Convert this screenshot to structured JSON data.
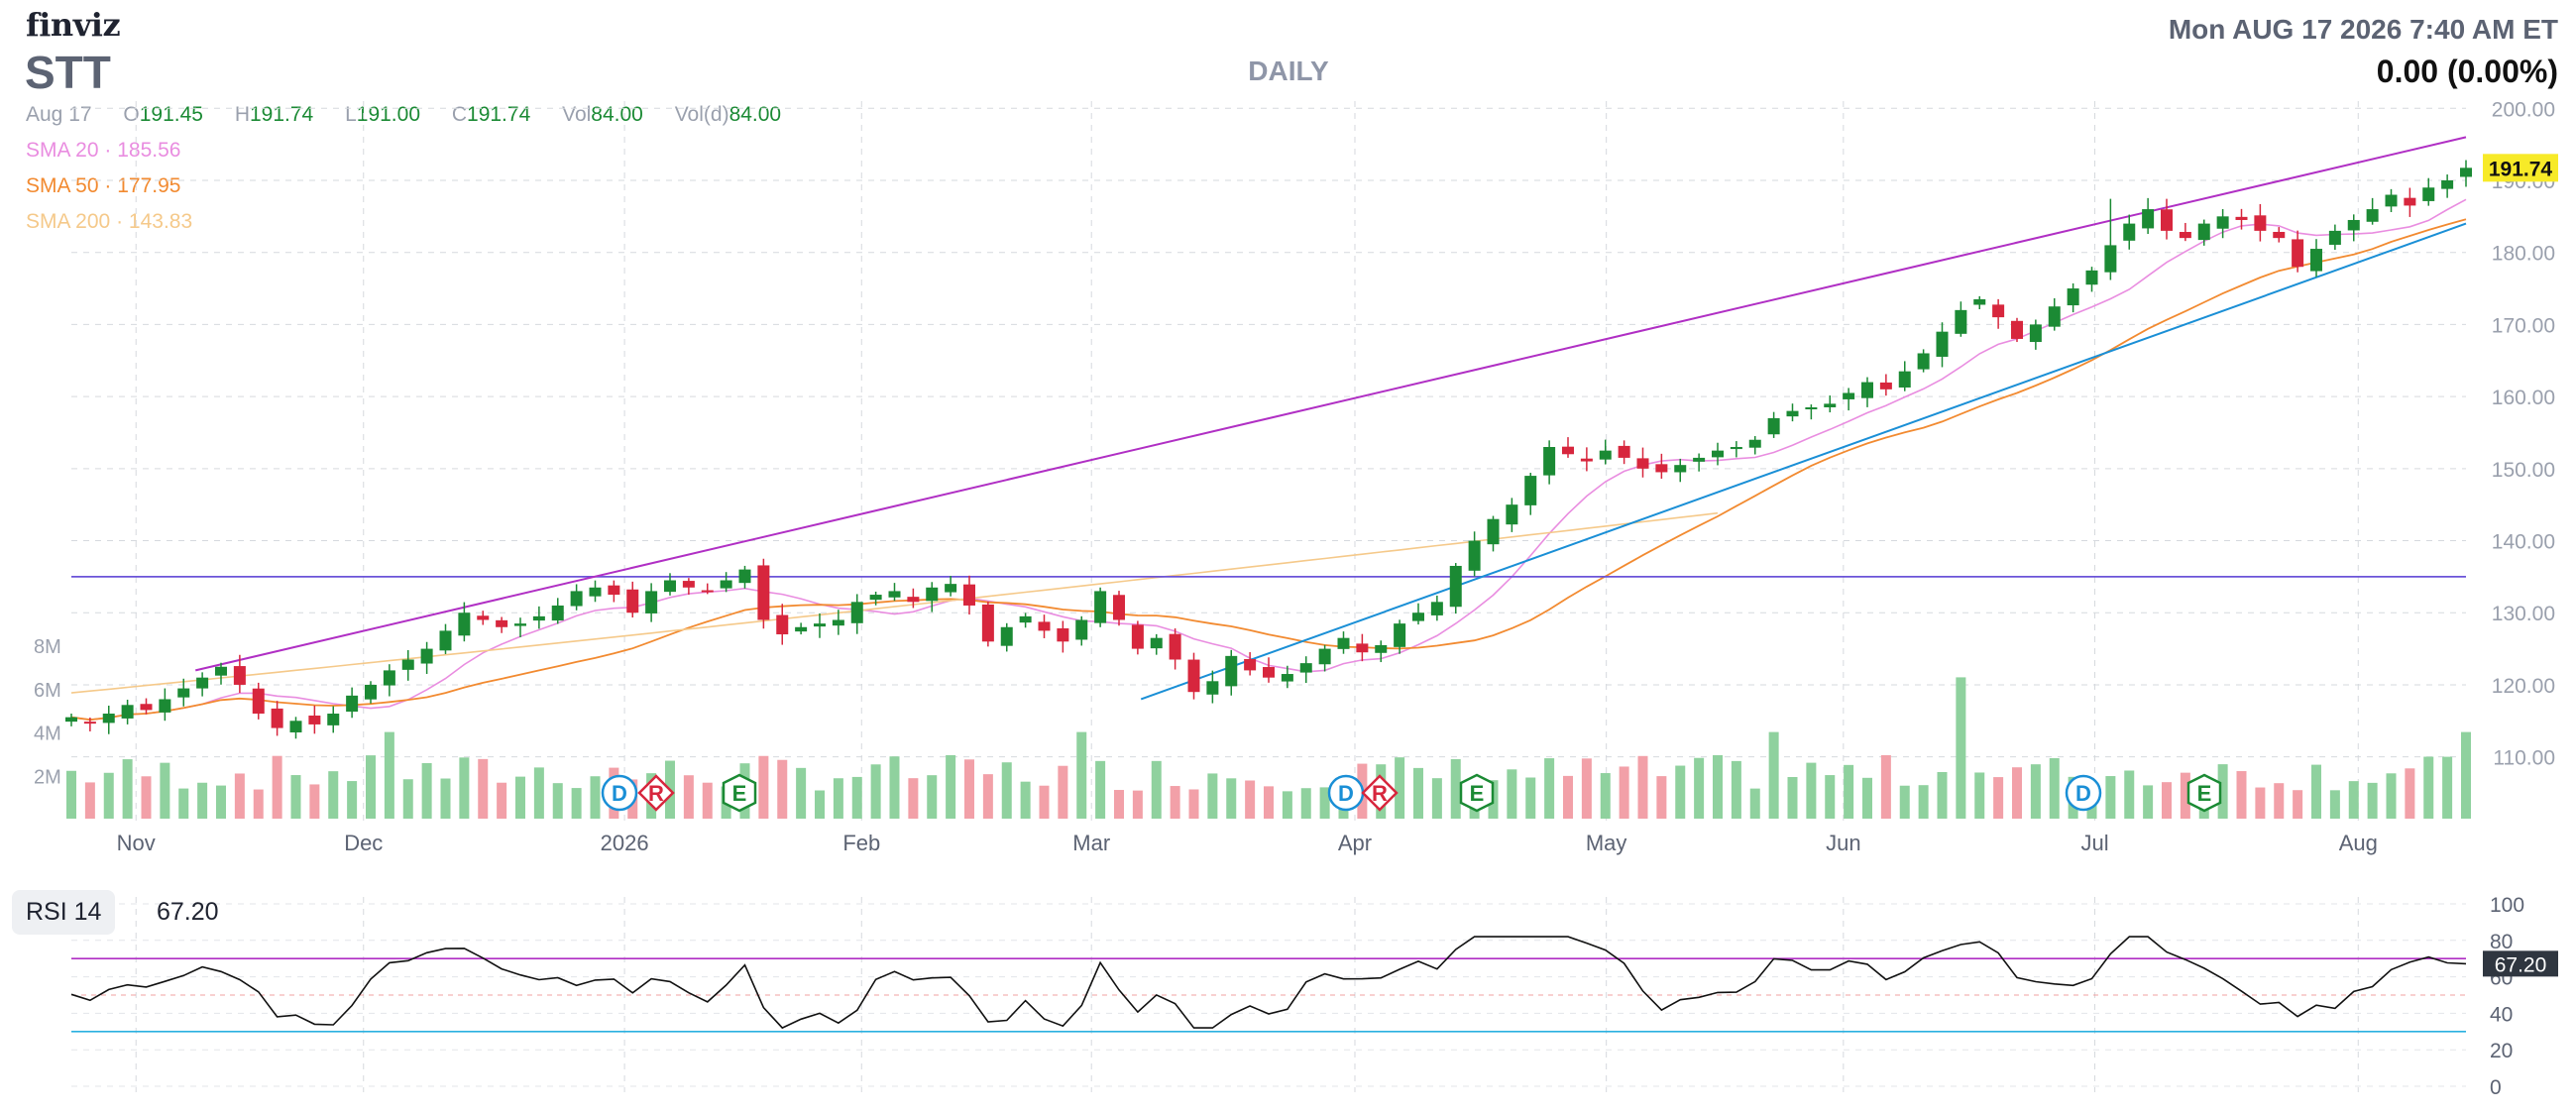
{
  "header": {
    "brand": "finviz",
    "ticker": "STT",
    "timeframe": "DAILY",
    "datetime": "Mon AUG 17 2026 7:40 AM ET",
    "change": "0.00 (0.00%)"
  },
  "ohlc": {
    "date": "Aug 17",
    "open_label": "O",
    "open": "191.45",
    "high_label": "H",
    "high": "191.74",
    "low_label": "L",
    "low": "191.00",
    "close_label": "C",
    "close": "191.74",
    "vol_label": "Vol",
    "vol": "84.00",
    "vold_label": "Vol(d)",
    "vold": "84.00"
  },
  "indicators": {
    "sma20": {
      "label": "SMA 20",
      "value": "185.56",
      "color": "#e98de0"
    },
    "sma50": {
      "label": "SMA 50",
      "value": "177.95",
      "color": "#f28a30"
    },
    "sma200": {
      "label": "SMA 200",
      "value": "143.83",
      "color": "#f5c98a"
    }
  },
  "rsi": {
    "label": "RSI 14",
    "value": "67.20",
    "last_tag": "67.20"
  },
  "colors": {
    "up": "#1b8a34",
    "down": "#d7263d",
    "up_vol": "#8fd19e",
    "down_vol": "#f2a0a8",
    "channel": "#b02fc4",
    "trend": "#1a8fd6",
    "hline": "#6b54d8",
    "rsi_band": "#b02fc4",
    "rsi_low": "#2ab0e0",
    "last_price_bg": "#f7ea28"
  },
  "chart_data": {
    "type": "candlestick",
    "symbol": "STT",
    "timeframe": "DAILY",
    "last_price": "191.74",
    "ylim": [
      105,
      201
    ],
    "y_ticks": [
      "110.00",
      "120.00",
      "130.00",
      "140.00",
      "150.00",
      "160.00",
      "170.00",
      "180.00",
      "190.00",
      "200.00"
    ],
    "volume_ticks": [
      "2M",
      "4M",
      "6M",
      "8M"
    ],
    "x_labels": [
      "Nov",
      "Dec",
      "2026",
      "Feb",
      "Mar",
      "Apr",
      "May",
      "Jun",
      "Jul",
      "Aug"
    ],
    "events": [
      {
        "label": "D",
        "type": "dividend",
        "month": "2026"
      },
      {
        "label": "R",
        "type": "split",
        "month": "2026"
      },
      {
        "label": "E",
        "type": "earnings",
        "month": "2026"
      },
      {
        "label": "D",
        "type": "dividend",
        "month": "Apr"
      },
      {
        "label": "R",
        "type": "split",
        "month": "Apr"
      },
      {
        "label": "E",
        "type": "earnings",
        "month": "Apr"
      },
      {
        "label": "D",
        "type": "dividend",
        "month": "Jul"
      },
      {
        "label": "E",
        "type": "earnings",
        "month": "Jul"
      }
    ],
    "close_series": [
      115.5,
      114.8,
      116.0,
      117.2,
      116.5,
      118.0,
      119.5,
      121.0,
      122.5,
      120.0,
      116.0,
      114.0,
      115.0,
      114.5,
      116.0,
      118.5,
      120.0,
      122.0,
      123.5,
      125.0,
      127.5,
      130.0,
      129.0,
      128.0,
      128.5,
      129.5,
      131.0,
      133.0,
      133.5,
      132.5,
      130.0,
      133.0,
      134.5,
      133.5,
      133.0,
      134.5,
      136.0,
      129.0,
      127.0,
      128.0,
      128.5,
      129.0,
      131.5,
      132.5,
      133.0,
      131.5,
      133.5,
      134.0,
      131.0,
      126.0,
      128.0,
      129.5,
      127.5,
      126.0,
      129.0,
      133.0,
      129.0,
      125.0,
      126.5,
      123.5,
      119.0,
      120.5,
      124.0,
      122.0,
      121.0,
      121.5,
      123.0,
      125.0,
      126.5,
      124.5,
      125.5,
      128.5,
      130.0,
      131.5,
      136.5,
      140.0,
      143.0,
      145.0,
      149.0,
      153.0,
      152.0,
      151.0,
      152.5,
      151.5,
      150.0,
      149.5,
      150.5,
      151.5,
      152.5,
      153.0,
      154.0,
      157.0,
      158.0,
      158.5,
      159.0,
      160.5,
      162.0,
      161.0,
      163.5,
      166.0,
      169.0,
      172.0,
      173.5,
      171.0,
      168.0,
      170.0,
      172.5,
      175.0,
      177.5,
      181.0,
      184.0,
      186.0,
      183.0,
      182.0,
      184.0,
      185.0,
      184.5,
      183.0,
      182.0,
      178.0,
      180.5,
      183.0,
      184.5,
      186.0,
      188.0,
      186.5,
      189.0,
      190.0,
      191.74
    ],
    "overlays": {
      "sma20_last": 185.56,
      "sma50_last": 177.95,
      "sma200_last": 143.83,
      "horizontal_line": 135.0,
      "upper_channel": [
        {
          "month": "Nov",
          "value": 122.0
        },
        {
          "month": "Aug",
          "value": 196.0
        }
      ],
      "trend_line": [
        {
          "month": "Mar",
          "value": 118.0
        },
        {
          "month": "Aug",
          "value": 184.0
        }
      ]
    },
    "rsi": {
      "y_ticks": [
        "0",
        "20",
        "40",
        "60",
        "80",
        "100"
      ],
      "levels": [
        70,
        30
      ],
      "last": 67.2
    }
  }
}
